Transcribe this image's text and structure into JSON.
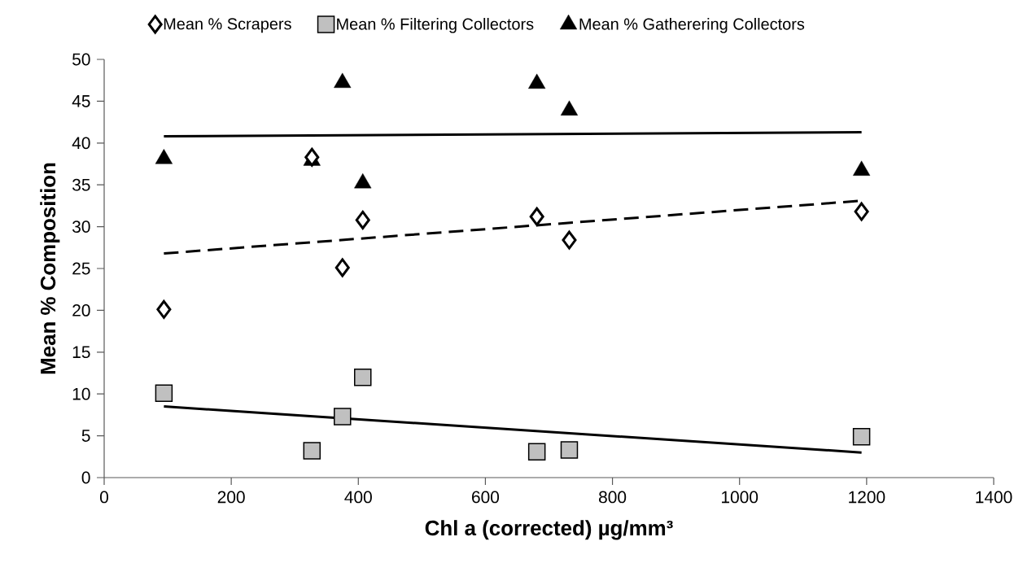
{
  "chart_data": {
    "type": "scatter",
    "xlabel": "Chl a (corrected) µg/mm³",
    "ylabel": "Mean % Composition",
    "xlim": [
      0,
      1400
    ],
    "xticks": [
      0,
      200,
      400,
      600,
      800,
      1000,
      1200,
      1400
    ],
    "ylim": [
      0,
      50
    ],
    "yticks": [
      0,
      5,
      10,
      15,
      20,
      25,
      30,
      35,
      40,
      45,
      50
    ],
    "legend": "top",
    "grid": false,
    "series": [
      {
        "name": "Mean % Scrapers",
        "color": "#000000",
        "marker": "diamond",
        "x": [
          94,
          327,
          375,
          407,
          681,
          732,
          1192
        ],
        "values": [
          20.1,
          38.3,
          25.1,
          30.8,
          31.2,
          28.4,
          31.8
        ]
      },
      {
        "name": "Mean % Filtering Collectors",
        "color": "#c0c0c0",
        "marker": "square",
        "x": [
          94,
          327,
          375,
          407,
          681,
          732,
          1192
        ],
        "values": [
          10.1,
          3.2,
          7.3,
          12.0,
          3.1,
          3.3,
          4.9
        ]
      },
      {
        "name": "Mean % Gatherering Collectors",
        "color": "#000000",
        "marker": "triangle",
        "x": [
          94,
          327,
          375,
          407,
          681,
          732,
          1192
        ],
        "values": [
          38.1,
          37.9,
          47.2,
          35.2,
          47.1,
          43.9,
          36.7
        ]
      },
      {
        "type": "line",
        "color": "#000000",
        "line_style": "dashed",
        "marker": "none",
        "x": [
          94,
          1192
        ],
        "values": [
          26.8,
          33.1
        ]
      },
      {
        "type": "line",
        "color": "#000000",
        "line_style": "solid",
        "marker": "none",
        "x": [
          94,
          1192
        ],
        "values": [
          8.5,
          3.0
        ]
      },
      {
        "type": "line",
        "color": "#000000",
        "line_style": "solid",
        "marker": "none",
        "x": [
          94,
          1192
        ],
        "values": [
          40.8,
          41.3
        ]
      }
    ]
  }
}
